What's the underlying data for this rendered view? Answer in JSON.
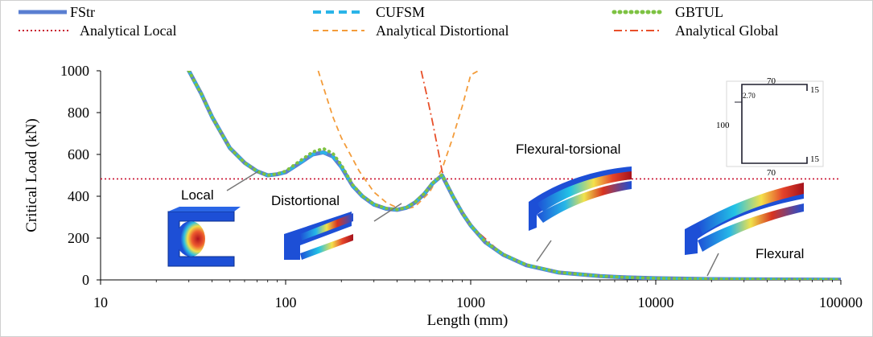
{
  "chart_data": {
    "type": "line",
    "xlabel": "Length  (mm)",
    "ylabel": "Critical Load (kN)",
    "xscale": "log",
    "xlim": [
      10,
      100000
    ],
    "ylim": [
      0,
      1000
    ],
    "x_ticks": [
      "10",
      "100",
      "1000",
      "10000",
      "100000"
    ],
    "y_ticks": [
      "0",
      "200",
      "400",
      "600",
      "800",
      "1000"
    ],
    "legend_position": "top",
    "legend": [
      {
        "name": "FStr",
        "style": "solid",
        "color": "#5a7fd1"
      },
      {
        "name": "CUFSM",
        "style": "dashed",
        "color": "#2ab4e8"
      },
      {
        "name": "GBTUL",
        "style": "dotted",
        "color": "#7dc242"
      },
      {
        "name": "Analytical Local",
        "style": "dotted",
        "color": "#c8102e"
      },
      {
        "name": "Analytical Distortional",
        "style": "dashed",
        "color": "#f39c3b"
      },
      {
        "name": "Analytical Global",
        "style": "dashdot",
        "color": "#e8502a"
      }
    ],
    "series": [
      {
        "name": "FStr",
        "x": [
          30,
          35,
          40,
          50,
          60,
          70,
          80,
          90,
          100,
          120,
          140,
          160,
          180,
          200,
          230,
          260,
          300,
          350,
          400,
          450,
          500,
          560,
          620,
          700,
          800,
          900,
          1000,
          1200,
          1500,
          2000,
          3000,
          5000,
          7000,
          10000,
          20000,
          50000,
          100000
        ],
        "y": [
          1000,
          890,
          780,
          630,
          560,
          520,
          500,
          505,
          515,
          560,
          600,
          610,
          590,
          540,
          450,
          400,
          360,
          340,
          335,
          345,
          370,
          410,
          460,
          500,
          400,
          320,
          260,
          180,
          120,
          70,
          35,
          18,
          12,
          8,
          4,
          2,
          1
        ]
      },
      {
        "name": "CUFSM",
        "x": [
          30,
          35,
          40,
          50,
          60,
          70,
          80,
          90,
          100,
          120,
          140,
          160,
          180,
          200,
          230,
          260,
          300,
          350,
          400,
          450,
          500,
          560,
          620,
          700,
          800,
          900,
          1000,
          1200,
          1500,
          2000,
          3000,
          5000,
          7000,
          10000,
          20000,
          50000,
          100000
        ],
        "y": [
          1000,
          890,
          780,
          630,
          560,
          520,
          500,
          505,
          515,
          560,
          600,
          610,
          590,
          540,
          450,
          400,
          360,
          340,
          335,
          345,
          370,
          410,
          460,
          500,
          400,
          320,
          260,
          180,
          120,
          70,
          35,
          18,
          12,
          8,
          4,
          2,
          1
        ]
      },
      {
        "name": "GBTUL",
        "x": [
          30,
          35,
          40,
          50,
          60,
          70,
          80,
          90,
          100,
          120,
          140,
          160,
          180,
          200,
          230,
          260,
          300,
          350,
          400,
          450,
          500,
          560,
          620,
          700,
          800,
          900,
          1000,
          1200,
          1500,
          2000,
          3000,
          5000,
          7000,
          10000,
          20000,
          50000,
          100000
        ],
        "y": [
          1000,
          890,
          780,
          630,
          560,
          520,
          500,
          507,
          520,
          570,
          612,
          628,
          605,
          550,
          455,
          402,
          362,
          342,
          336,
          346,
          372,
          412,
          462,
          502,
          402,
          322,
          262,
          182,
          122,
          72,
          36,
          18,
          12,
          8,
          4,
          2,
          1
        ]
      },
      {
        "name": "Analytical Local",
        "x": [
          10,
          100000
        ],
        "y": [
          483,
          483
        ]
      },
      {
        "name": "Analytical Distortional",
        "x": [
          150,
          180,
          200,
          250,
          300,
          350,
          400,
          450,
          500,
          600,
          700,
          800,
          900,
          1000,
          1100
        ],
        "y": [
          1000,
          780,
          680,
          520,
          420,
          370,
          345,
          340,
          350,
          420,
          530,
          680,
          830,
          980,
          1000
        ]
      },
      {
        "name": "Analytical Global",
        "x": [
          540,
          580,
          620,
          660,
          700,
          750,
          800,
          900,
          1000,
          1500,
          2000,
          3000,
          5000,
          10000,
          20000,
          50000,
          100000
        ],
        "y": [
          1000,
          880,
          760,
          640,
          520,
          450,
          400,
          320,
          260,
          120,
          70,
          35,
          18,
          8,
          4,
          2,
          1
        ]
      }
    ]
  },
  "annotations": {
    "local": "Local",
    "distortional": "Distortional",
    "flexural_torsional": "Flexural-torsional",
    "flexural": "Flexural"
  },
  "section": {
    "web_height": "100",
    "flange_top": "70",
    "flange_bottom": "70",
    "lip_top": "15",
    "lip_bottom": "15",
    "thickness": "2.70"
  }
}
